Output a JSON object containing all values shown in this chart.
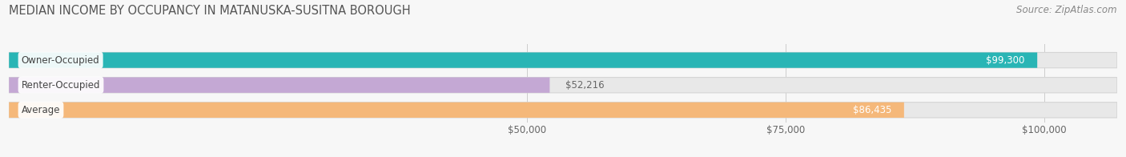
{
  "title": "MEDIAN INCOME BY OCCUPANCY IN MATANUSKA-SUSITNA BOROUGH",
  "source": "Source: ZipAtlas.com",
  "categories": [
    "Owner-Occupied",
    "Renter-Occupied",
    "Average"
  ],
  "values": [
    99300,
    52216,
    86435
  ],
  "labels": [
    "$99,300",
    "$52,216",
    "$86,435"
  ],
  "bar_colors": [
    "#29b5b5",
    "#c4a8d4",
    "#f5b87a"
  ],
  "xmin": 0,
  "xmax": 107000,
  "xticks": [
    50000,
    75000,
    100000
  ],
  "xtick_labels": [
    "$50,000",
    "$75,000",
    "$100,000"
  ],
  "title_fontsize": 10.5,
  "source_fontsize": 8.5,
  "label_fontsize": 8.5,
  "category_fontsize": 8.5,
  "background_color": "#f7f7f7",
  "bar_height": 0.62,
  "bar_bg_color": "#e8e8e8",
  "bar_edge_color": "#d5d5d5",
  "grid_color": "#cccccc",
  "label_color_inside": "#ffffff",
  "label_color_outside": "#666666",
  "cat_label_color": "#444444"
}
